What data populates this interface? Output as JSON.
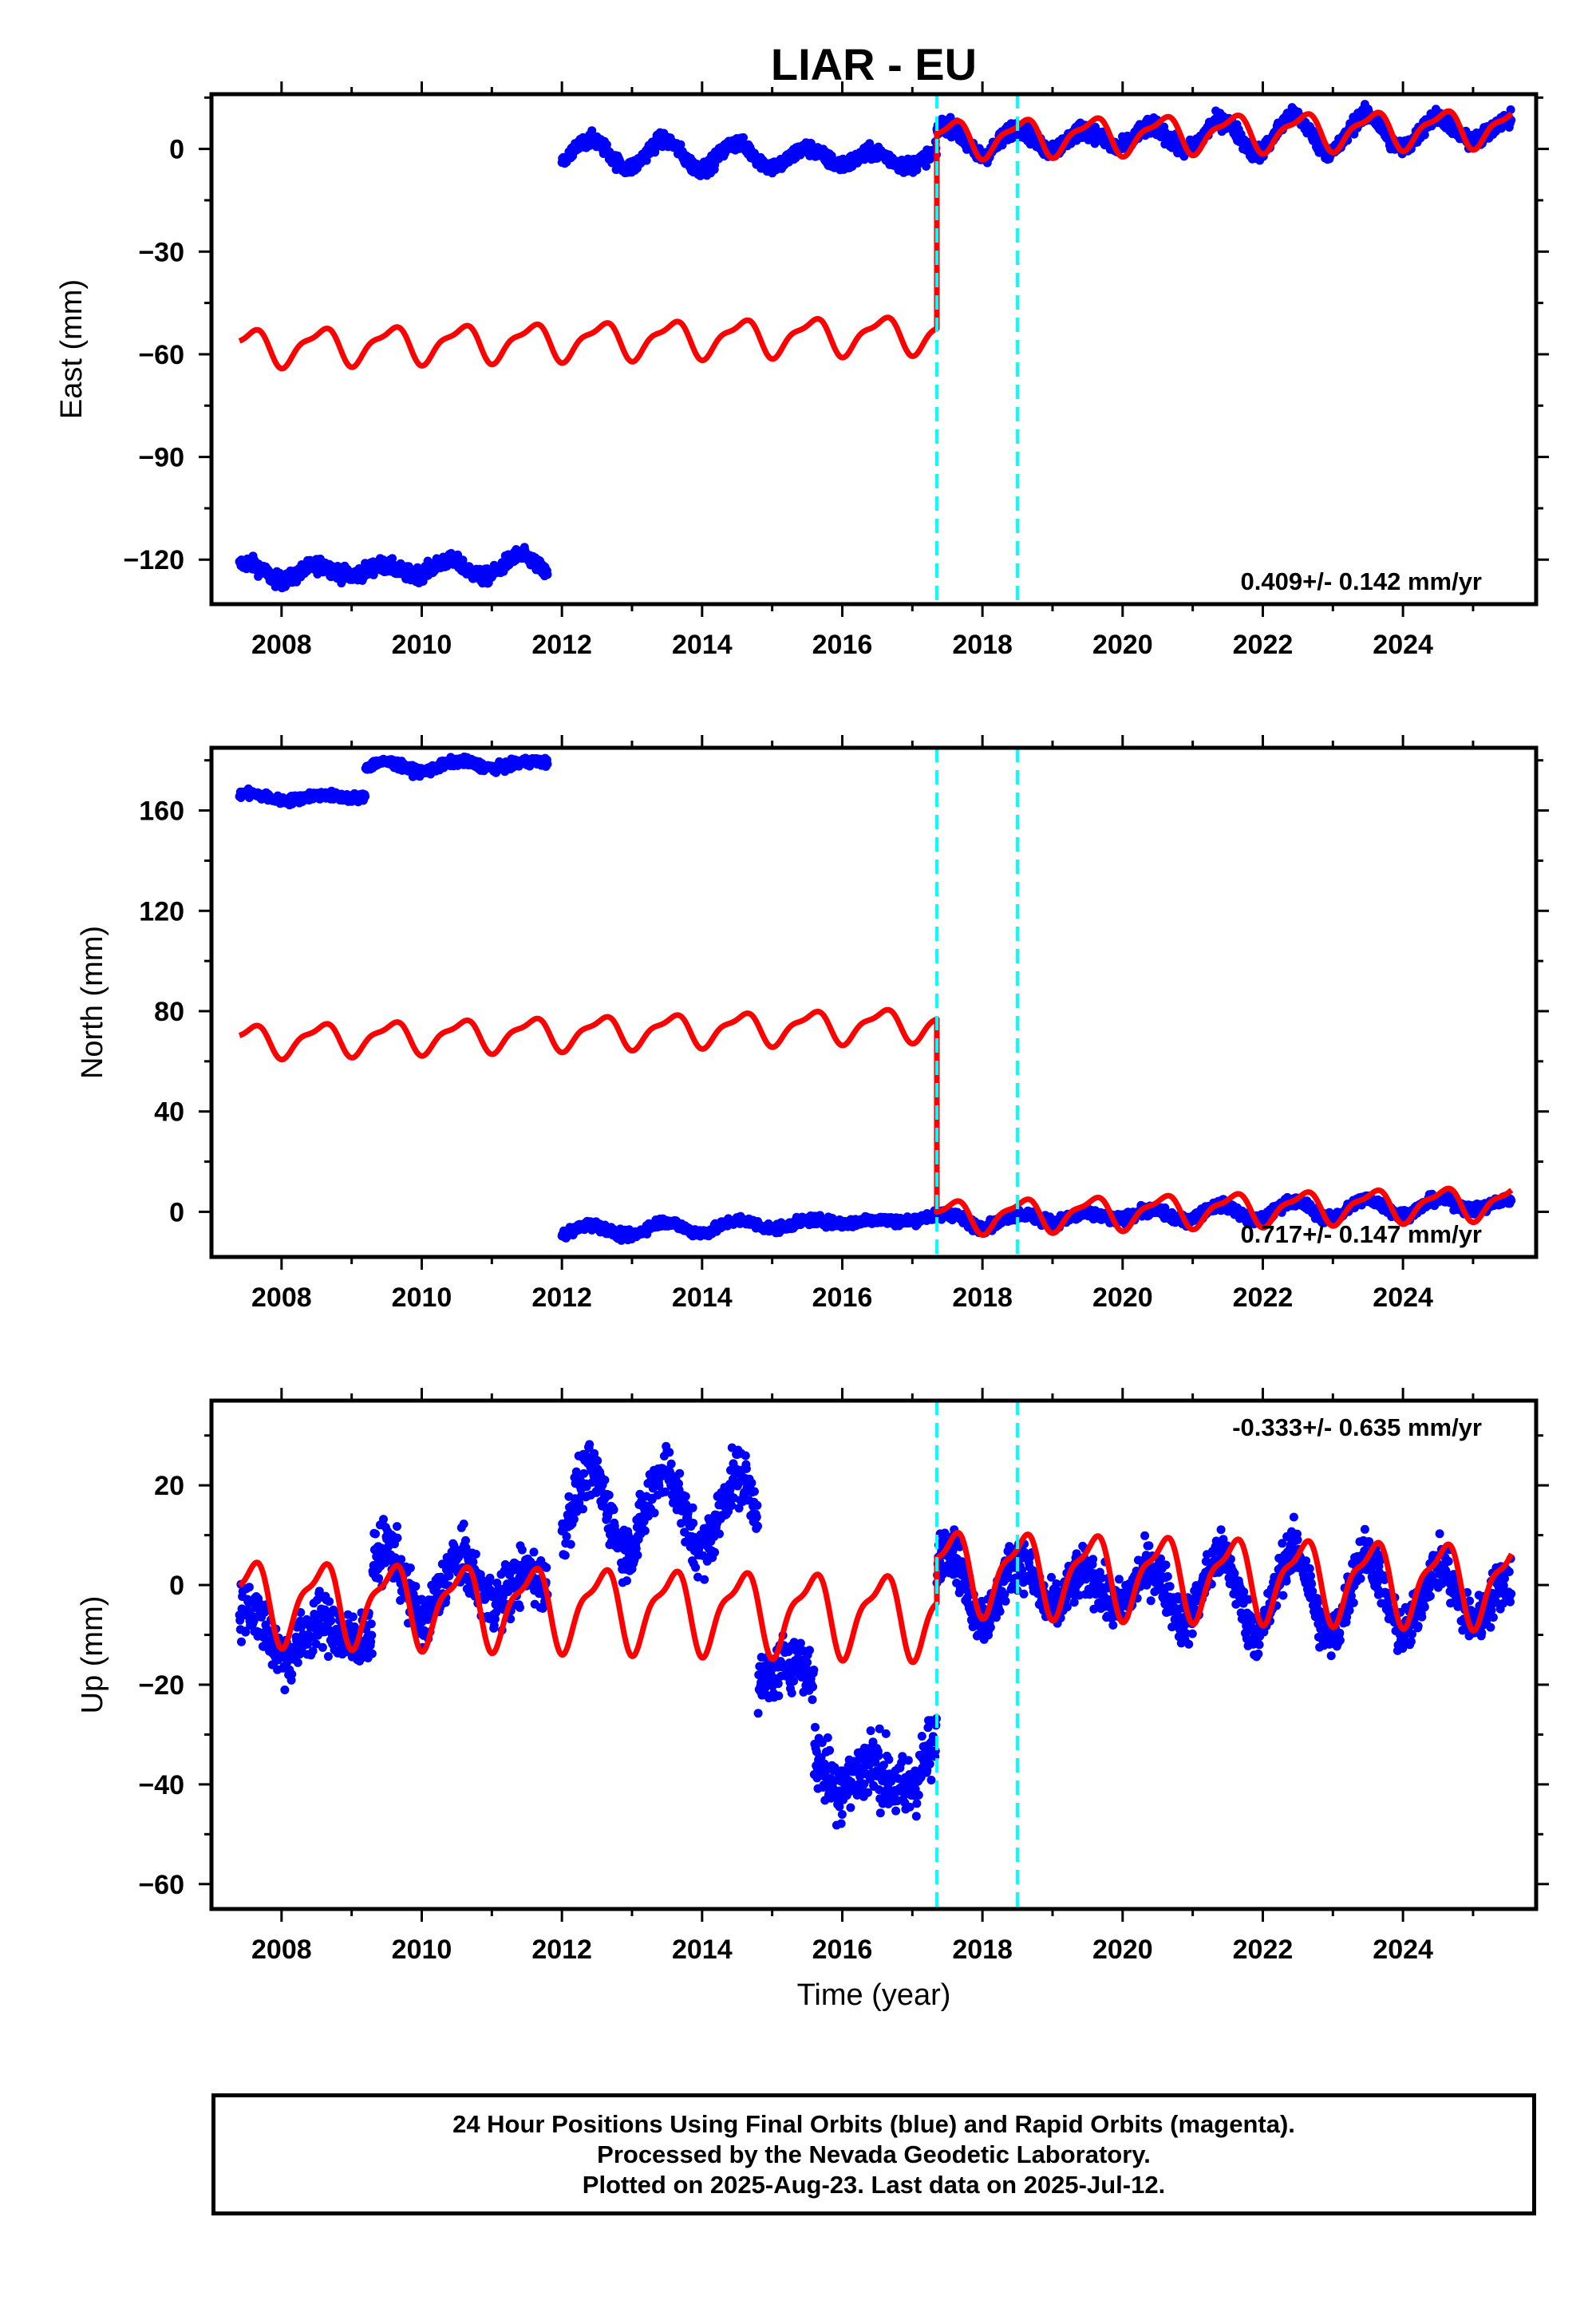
{
  "title": "LIAR - EU",
  "colors": {
    "final": "#0000ff",
    "model": "#ff0000",
    "offset": "#00ffff",
    "frame": "#000000"
  },
  "chart_data": [
    {
      "type": "scatter",
      "component": "east",
      "ylabel": "East (mm)",
      "xlabel": "",
      "xlim": [
        2007.0,
        2025.9
      ],
      "ylim": [
        -133,
        16
      ],
      "xticks": [
        2008,
        2010,
        2012,
        2014,
        2016,
        2018,
        2020,
        2022,
        2024
      ],
      "yticks": [
        -120,
        -90,
        -60,
        -30,
        0
      ],
      "ytick_labels": [
        "−120",
        "−90",
        "−60",
        "−30",
        "0"
      ],
      "offsets": [
        2017.35,
        2018.5
      ],
      "rate": "0.409+/- 0.142 mm/yr",
      "segments": [
        {
          "start": 2007.4,
          "end": 2011.8,
          "base": -124,
          "slope": 0.5,
          "amp": 2.5,
          "noise": 1.5
        },
        {
          "start": 2012.0,
          "end": 2017.35,
          "base": -1,
          "slope": -0.4,
          "amp": 3.0,
          "noise": 1.5
        },
        {
          "start": 2017.35,
          "end": 2025.55,
          "base": 2,
          "slope": 0.45,
          "amp": 4.0,
          "noise": 1.7
        }
      ],
      "model": [
        {
          "start": 2007.4,
          "end": 2017.35,
          "base": -58,
          "slope": 0.4,
          "amp": 5.0
        },
        {
          "start": 2017.35,
          "end": 2025.55,
          "base": 3,
          "slope": 0.409,
          "amp": 5.0
        }
      ]
    },
    {
      "type": "scatter",
      "component": "north",
      "ylabel": "North (mm)",
      "xlabel": "",
      "xlim": [
        2007.0,
        2025.9
      ],
      "ylim": [
        -18,
        185
      ],
      "xticks": [
        2008,
        2010,
        2012,
        2014,
        2016,
        2018,
        2020,
        2022,
        2024
      ],
      "yticks": [
        0,
        40,
        80,
        120,
        160
      ],
      "ytick_labels": [
        "0",
        "40",
        "80",
        "120",
        "160"
      ],
      "offsets": [
        2017.35,
        2018.5
      ],
      "rate": "0.717+/- 0.147 mm/yr",
      "segments": [
        {
          "start": 2007.4,
          "end": 2009.2,
          "base": 165,
          "slope": 0.3,
          "amp": 1.2,
          "noise": 1.2
        },
        {
          "start": 2009.2,
          "end": 2011.8,
          "base": 177,
          "slope": 0.7,
          "amp": 1.2,
          "noise": 1.2
        },
        {
          "start": 2012.0,
          "end": 2017.35,
          "base": -8,
          "slope": 1.0,
          "amp": 1.5,
          "noise": 1.3
        },
        {
          "start": 2017.35,
          "end": 2025.55,
          "base": -4,
          "slope": 0.9,
          "amp": 2.5,
          "noise": 1.5
        }
      ],
      "model": [
        {
          "start": 2007.4,
          "end": 2017.35,
          "base": 68,
          "slope": 0.7,
          "amp": 6.0
        },
        {
          "start": 2017.35,
          "end": 2025.55,
          "base": -2,
          "slope": 0.717,
          "amp": 6.0
        }
      ]
    },
    {
      "type": "scatter",
      "component": "up",
      "ylabel": "Up (mm)",
      "xlabel": "Time (year)",
      "xlim": [
        2007.0,
        2025.9
      ],
      "ylim": [
        -65,
        37
      ],
      "xticks": [
        2008,
        2010,
        2012,
        2014,
        2016,
        2018,
        2020,
        2022,
        2024
      ],
      "yticks": [
        -60,
        -40,
        -20,
        0,
        20
      ],
      "ytick_labels": [
        "−60",
        "−40",
        "−20",
        "0",
        "20"
      ],
      "offsets": [
        2017.35,
        2018.5
      ],
      "rate": "-0.333+/- 0.635 mm/yr",
      "segments": [
        {
          "start": 2007.4,
          "end": 2009.3,
          "base": -10,
          "slope": 0.0,
          "amp": 4.0,
          "noise": 4.0
        },
        {
          "start": 2009.3,
          "end": 2011.8,
          "base": 0,
          "slope": 0.0,
          "amp": 5.0,
          "noise": 4.0
        },
        {
          "start": 2012.0,
          "end": 2014.8,
          "base": 15,
          "slope": 0.0,
          "amp": 5.0,
          "noise": 4.0
        },
        {
          "start": 2014.8,
          "end": 2015.6,
          "base": -18,
          "slope": 0.0,
          "amp": 3.0,
          "noise": 4.0
        },
        {
          "start": 2015.6,
          "end": 2017.35,
          "base": -38,
          "slope": 0.0,
          "amp": 6.0,
          "noise": 5.0
        },
        {
          "start": 2017.35,
          "end": 2025.55,
          "base": 0,
          "slope": -0.33,
          "amp": 6.0,
          "noise": 3.5
        }
      ],
      "model": [
        {
          "start": 2007.4,
          "end": 2017.35,
          "base": -3,
          "slope": -0.3,
          "amp": 7.5
        },
        {
          "start": 2017.35,
          "end": 2025.55,
          "base": 3,
          "slope": -0.333,
          "amp": 7.5
        }
      ]
    }
  ],
  "caption": {
    "line1": "24 Hour Positions Using Final Orbits (blue) and Rapid Orbits (magenta).",
    "line2": "Processed by the Nevada Geodetic Laboratory.",
    "line3": "Plotted on 2025-Aug-23. Last data on 2025-Jul-12."
  }
}
